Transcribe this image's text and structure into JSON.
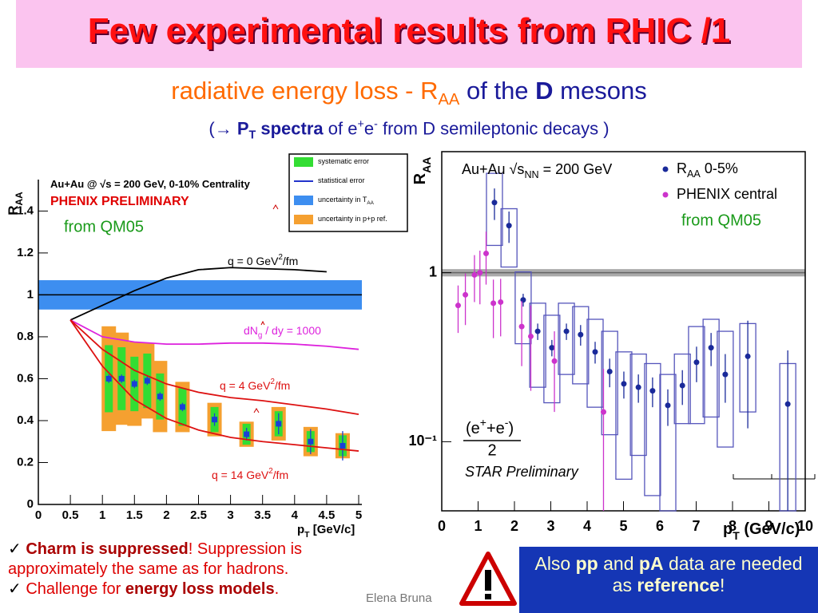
{
  "title": "Few experimental results from RHIC /1",
  "subtitle": [
    {
      "t": "radiative energy loss - R",
      "c": "#ff6a00"
    },
    {
      "t": "AA",
      "s": "sub",
      "c": "#ff6a00"
    },
    {
      "t": " of the ",
      "c": "#1a1a9a"
    },
    {
      "t": "D",
      "s": "b",
      "c": "#1a1a9a"
    },
    {
      "t": " mesons",
      "c": "#1a1a9a"
    }
  ],
  "subtitle2": [
    {
      "t": "("
    },
    {
      "t": "→ "
    },
    {
      "t": "P",
      "s": "b"
    },
    {
      "t": "T",
      "s": "subb"
    },
    {
      "t": " spectra",
      "s": "b"
    },
    {
      "t": " of e"
    },
    {
      "t": "+",
      "s": "sup"
    },
    {
      "t": "e"
    },
    {
      "t": "-",
      "s": "sup"
    },
    {
      "t": " from D semileptonic decays )"
    }
  ],
  "chart_data": [
    {
      "type": "scatter",
      "logy": false,
      "header": [
        {
          "t": "Au+Au @ √s = 200 GeV, 0-10% Centrality"
        }
      ],
      "label": "PHENIX PRELIMINARY",
      "note": "from QM05",
      "ylabel": [
        {
          "t": "R"
        },
        {
          "t": "AA",
          "s": "sub"
        }
      ],
      "xlabel": [
        {
          "t": "p"
        },
        {
          "t": "T",
          "s": "sub"
        },
        {
          "t": " [GeV/c]"
        }
      ],
      "xlim": [
        0,
        5.05
      ],
      "xticks": [
        0,
        0.5,
        1,
        1.5,
        2,
        2.5,
        3,
        3.5,
        4,
        4.5,
        5
      ],
      "ylim": [
        0,
        1.55
      ],
      "yticks": [
        0,
        0.2,
        0.4,
        0.6,
        0.8,
        1,
        1.2,
        1.4
      ],
      "reference": {
        "value": 1,
        "band": 0.07,
        "color": "#3d8ef0"
      },
      "legend": [
        {
          "label": [
            {
              "t": "systematic error"
            }
          ],
          "color": "#33dd33",
          "swatch": "box"
        },
        {
          "label": [
            {
              "t": "statistical error"
            }
          ],
          "color": "#2233cc",
          "swatch": "line"
        },
        {
          "label": [
            {
              "t": "uncertainty in T"
            },
            {
              "t": "AA",
              "s": "sub"
            }
          ],
          "color": "#3d8ef0",
          "swatch": "box"
        },
        {
          "label": [
            {
              "t": "uncertainty in p+p ref."
            }
          ],
          "color": "#f5a030",
          "swatch": "box"
        }
      ],
      "series": [
        {
          "color": "#1a3fd6",
          "marker": "square",
          "x": [
            1.1,
            1.3,
            1.5,
            1.7,
            1.9,
            2.25,
            2.75,
            3.25,
            3.75,
            4.25,
            4.75
          ],
          "values": [
            0.6,
            0.6,
            0.575,
            0.59,
            0.515,
            0.465,
            0.405,
            0.335,
            0.385,
            0.3,
            0.28
          ],
          "errors": [
            0.02,
            0.02,
            0.02,
            0.02,
            0.02,
            0.02,
            0.03,
            0.03,
            0.05,
            0.06,
            0.07
          ],
          "sys": [
            0.16,
            0.15,
            0.13,
            0.13,
            0.11,
            0.09,
            0.06,
            0.05,
            0.06,
            0.05,
            0.05
          ],
          "sys_color": "#33dd33",
          "ppref": [
            0.25,
            0.22,
            0.2,
            0.18,
            0.17,
            0.12,
            0.08,
            0.06,
            0.08,
            0.07,
            0.06
          ],
          "ppref_color": "#f5a030"
        }
      ],
      "curves": [
        {
          "label": [
            {
              "t": "q = 0 GeV"
            },
            {
              "t": "2",
              "s": "sup"
            },
            {
              "t": "/fm"
            }
          ],
          "color": "#000000",
          "x": [
            0.5,
            1,
            1.5,
            2,
            2.5,
            3,
            3.5,
            4,
            4.5
          ],
          "values": [
            0.88,
            0.95,
            1.02,
            1.08,
            1.12,
            1.13,
            1.125,
            1.12,
            1.11
          ]
        },
        {
          "label": [
            {
              "t": "dN"
            },
            {
              "t": "g",
              "s": "sub"
            },
            {
              "t": " / dy = 1000"
            }
          ],
          "color": "#dd22dd",
          "x": [
            0.5,
            1,
            1.5,
            2,
            2.5,
            3,
            3.5,
            4,
            4.5,
            5
          ],
          "values": [
            0.88,
            0.8,
            0.775,
            0.765,
            0.765,
            0.77,
            0.77,
            0.765,
            0.755,
            0.74
          ]
        },
        {
          "label": [
            {
              "t": "q = 4 GeV"
            },
            {
              "t": "2",
              "s": "sup"
            },
            {
              "t": "/fm"
            }
          ],
          "color": "#dd1111",
          "x": [
            0.5,
            1,
            1.5,
            2,
            2.5,
            3,
            3.5,
            4,
            4.5,
            5
          ],
          "values": [
            0.88,
            0.74,
            0.64,
            0.575,
            0.535,
            0.51,
            0.495,
            0.475,
            0.455,
            0.43
          ]
        },
        {
          "label": [
            {
              "t": "q = 14 GeV"
            },
            {
              "t": "2",
              "s": "sup"
            },
            {
              "t": "/fm"
            }
          ],
          "color": "#dd1111",
          "x": [
            0.5,
            1,
            1.5,
            2,
            2.5,
            3,
            3.5,
            4,
            4.5,
            5
          ],
          "values": [
            0.88,
            0.66,
            0.5,
            0.41,
            0.355,
            0.32,
            0.3,
            0.285,
            0.27,
            0.255
          ]
        }
      ]
    },
    {
      "type": "scatter",
      "logy": true,
      "header": [
        {
          "t": "Au+Au  √s"
        },
        {
          "t": "NN",
          "s": "sub"
        },
        {
          "t": " = 200 GeV"
        }
      ],
      "label": "STAR Preliminary",
      "note": "from QM05",
      "annotation": [
        {
          "t": "(e"
        },
        {
          "t": "+",
          "s": "sup"
        },
        {
          "t": "+e"
        },
        {
          "t": "-",
          "s": "sup"
        },
        {
          "t": ")"
        }
      ],
      "annotation_denominator": "2",
      "ylabel": [
        {
          "t": "R"
        },
        {
          "t": "AA",
          "s": "sub"
        }
      ],
      "xlabel": [
        {
          "t": "p"
        },
        {
          "t": "T",
          "s": "sub"
        },
        {
          "t": " (GeV/c)"
        }
      ],
      "xlim": [
        0,
        10
      ],
      "xticks": [
        0,
        1,
        2,
        3,
        4,
        5,
        6,
        7,
        8,
        9,
        10
      ],
      "ylim": [
        0.039,
        5.2
      ],
      "yticks": [
        {
          "value": 0.1,
          "label": "10⁻¹"
        },
        1
      ],
      "reference": {
        "value": 1,
        "band": 0.05,
        "color": "#aaaaaa"
      },
      "series": [
        {
          "name": [
            {
              "t": "R"
            },
            {
              "t": "AA",
              "s": "sub"
            },
            {
              "t": " 0-5%"
            }
          ],
          "color": "#1a2a9a",
          "marker": "circle",
          "box_color": "#5555bb",
          "x": [
            1.45,
            1.85,
            2.24,
            2.64,
            3.03,
            3.43,
            3.82,
            4.22,
            4.62,
            5.01,
            5.41,
            5.8,
            6.22,
            6.62,
            7.01,
            7.41,
            7.8,
            8.42,
            9.52
          ],
          "values": [
            2.6,
            1.9,
            0.69,
            0.45,
            0.36,
            0.45,
            0.43,
            0.34,
            0.26,
            0.22,
            0.21,
            0.2,
            0.164,
            0.215,
            0.295,
            0.36,
            0.25,
            0.32,
            0.167
          ],
          "errors": [
            0.55,
            0.4,
            0.06,
            0.05,
            0.04,
            0.05,
            0.06,
            0.05,
            0.05,
            0.04,
            0.04,
            0.04,
            0.04,
            0.05,
            0.07,
            0.08,
            0.08,
            0.2,
            0.18
          ],
          "sys_low": [
            1.45,
            1.08,
            0.38,
            0.21,
            0.17,
            0.25,
            0.22,
            0.16,
            0.11,
            0.06,
            0.083,
            0.048,
            0.039,
            0.128,
            0.128,
            0.14,
            0.093,
            0.15,
            0.039
          ],
          "sys_high": [
            3.87,
            2.39,
            1.01,
            0.66,
            0.56,
            0.66,
            0.63,
            0.53,
            0.45,
            0.34,
            0.33,
            0.29,
            0.25,
            0.33,
            0.48,
            0.53,
            0.45,
            0.5,
            0.29
          ]
        },
        {
          "name": [
            {
              "t": "PHENIX central"
            }
          ],
          "color": "#cc33cc",
          "marker": "circle",
          "x": [
            0.45,
            0.65,
            0.9,
            1.05,
            1.22,
            1.42,
            1.62,
            2.2,
            2.45,
            3.1,
            4.45
          ],
          "values": [
            0.64,
            0.74,
            0.97,
            1,
            1.3,
            0.66,
            0.67,
            0.48,
            0.42,
            0.3,
            0.15
          ],
          "errors": [
            0.2,
            0.25,
            0.3,
            0.35,
            0.45,
            0.25,
            0.25,
            0.2,
            0.22,
            0.15,
            0.12
          ]
        }
      ]
    }
  ],
  "bullets": [
    [
      {
        "t": "✓ ",
        "c": "#000000"
      },
      {
        "t": "Charm is suppressed",
        "s": "b",
        "c": "#aa0000"
      },
      {
        "t": "! Suppression is approximately the same as for hadrons."
      }
    ],
    [
      {
        "t": "✓ ",
        "c": "#000000"
      },
      {
        "t": "Challenge for "
      },
      {
        "t": "energy loss models",
        "s": "b",
        "c": "#aa0000"
      },
      {
        "t": "."
      }
    ]
  ],
  "author": "Elena Bruna",
  "callout": [
    {
      "t": "Also "
    },
    {
      "t": "pp",
      "s": "b"
    },
    {
      "t": " and "
    },
    {
      "t": "pA",
      "s": "b"
    },
    {
      "t": " data are needed as "
    },
    {
      "t": "reference",
      "s": "b"
    },
    {
      "t": "!"
    }
  ]
}
